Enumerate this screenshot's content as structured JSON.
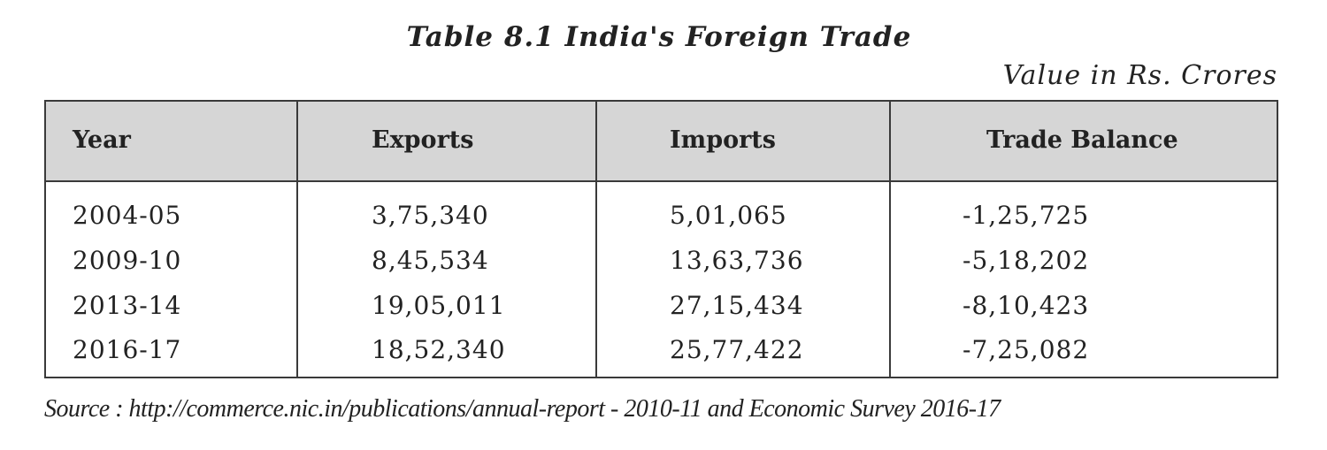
{
  "title": "Table 8.1 India's Foreign Trade",
  "unit_note": "Value in Rs. Crores",
  "table": {
    "header": [
      "Year",
      "Exports",
      "Imports",
      "Trade Balance"
    ],
    "rows": [
      [
        "2004-05",
        "3,75,340",
        "5,01,065",
        "-1,25,725"
      ],
      [
        "2009-10",
        "8,45,534",
        "13,63,736",
        "-5,18,202"
      ],
      [
        "2013-14",
        "19,05,011",
        "27,15,434",
        "-8,10,423"
      ],
      [
        "2016-17",
        "18,52,340",
        "25,77,422",
        "-7,25,082"
      ]
    ]
  },
  "source": "Source : http://commerce.nic.in/publications/annual-report - 2010-11 and Economic Survey 2016-17"
}
